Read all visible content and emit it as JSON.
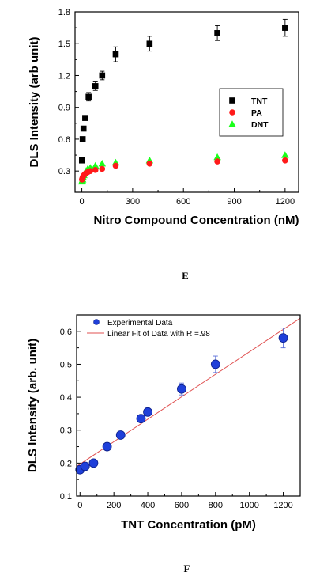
{
  "chart_data": [
    {
      "type": "scatter",
      "panel_label": "E",
      "xlabel": "Nitro Compound Concentration (nM)",
      "ylabel": "DLS Intensity (arb unit)",
      "xlim": [
        -40,
        1280
      ],
      "ylim": [
        0.1,
        1.8
      ],
      "xticks": [
        0,
        300,
        600,
        900,
        1200
      ],
      "yticks": [
        0.3,
        0.6,
        0.9,
        1.2,
        1.5,
        1.8
      ],
      "tick_labels_x": [
        "0",
        "300",
        "600",
        "900",
        "1200"
      ],
      "tick_labels_y": [
        "0.3",
        "0.6",
        "0.9",
        "1.2",
        "1.5",
        "1.8"
      ],
      "legend_position": "middle-right",
      "series": [
        {
          "name": "TNT",
          "marker": "square",
          "color": "#000000",
          "x": [
            1,
            5,
            10,
            20,
            40,
            80,
            120,
            200,
            400,
            800,
            1200
          ],
          "y": [
            0.4,
            0.6,
            0.7,
            0.8,
            1.0,
            1.1,
            1.2,
            1.4,
            1.5,
            1.6,
            1.65
          ],
          "err": [
            0,
            0,
            0,
            0.02,
            0.04,
            0.04,
            0.04,
            0.07,
            0.07,
            0.07,
            0.08
          ]
        },
        {
          "name": "PA",
          "marker": "circle",
          "color": "#ff1a1a",
          "x": [
            1,
            3,
            5,
            8,
            12,
            18,
            25,
            35,
            50,
            80,
            120,
            200,
            400,
            800,
            1200
          ],
          "y": [
            0.22,
            0.23,
            0.24,
            0.25,
            0.26,
            0.27,
            0.28,
            0.29,
            0.3,
            0.31,
            0.32,
            0.35,
            0.37,
            0.39,
            0.4
          ],
          "err": [
            0,
            0,
            0,
            0,
            0,
            0,
            0,
            0,
            0,
            0,
            0,
            0,
            0.01,
            0.01,
            0.01
          ]
        },
        {
          "name": "DNT",
          "marker": "triangle",
          "color": "#1aff1a",
          "x": [
            1,
            3,
            5,
            8,
            12,
            18,
            25,
            35,
            50,
            80,
            120,
            200,
            400,
            800,
            1200
          ],
          "y": [
            0.2,
            0.21,
            0.22,
            0.24,
            0.26,
            0.28,
            0.3,
            0.32,
            0.33,
            0.35,
            0.37,
            0.38,
            0.4,
            0.43,
            0.45
          ],
          "err": [
            0,
            0,
            0,
            0,
            0,
            0,
            0,
            0,
            0,
            0,
            0,
            0,
            0,
            0,
            0
          ]
        }
      ]
    },
    {
      "type": "scatter",
      "panel_label": "F",
      "xlabel": "TNT Concentration (pM)",
      "ylabel": "DLS Intensity (arb. unit)",
      "xlim": [
        -20,
        1300
      ],
      "ylim": [
        0.1,
        0.65
      ],
      "xticks": [
        0,
        200,
        400,
        600,
        800,
        1000,
        1200
      ],
      "yticks": [
        0.1,
        0.2,
        0.3,
        0.4,
        0.5,
        0.6
      ],
      "tick_labels_x": [
        "0",
        "200",
        "400",
        "600",
        "800",
        "1000",
        "1200"
      ],
      "tick_labels_y": [
        "0.1",
        "0.2",
        "0.3",
        "0.4",
        "0.5",
        "0.6"
      ],
      "legend_position": "top-left",
      "series": [
        {
          "name": "Experimental Data",
          "marker": "circle",
          "color": "#1f3fd9",
          "x": [
            0,
            30,
            80,
            160,
            240,
            360,
            400,
            600,
            800,
            1200
          ],
          "y": [
            0.18,
            0.19,
            0.2,
            0.25,
            0.285,
            0.335,
            0.355,
            0.425,
            0.5,
            0.58
          ],
          "err": [
            0.005,
            0.005,
            0.005,
            0.006,
            0.007,
            0.01,
            0.012,
            0.018,
            0.025,
            0.03
          ]
        }
      ],
      "fit": {
        "name": "Linear Fit of Data with R =.98",
        "color": "#e05050",
        "x": [
          -20,
          1300
        ],
        "y": [
          0.19,
          0.64
        ]
      }
    }
  ]
}
